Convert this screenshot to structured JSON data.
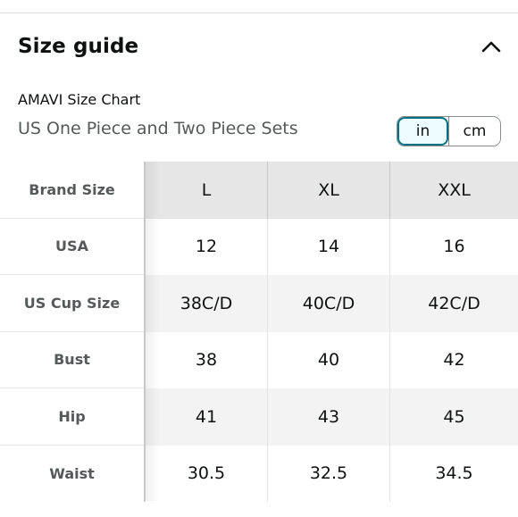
{
  "header": {
    "title": "Size guide",
    "toggle_icon": "chevron-up-icon"
  },
  "chart": {
    "brand": "AMAVI Size Chart",
    "set_name": "US One Piece and Two Piece Sets"
  },
  "units": {
    "options": [
      "in",
      "cm"
    ],
    "selected": "in",
    "accent": "#007185"
  },
  "table": {
    "header_label": "Brand Size",
    "sizes": [
      "L",
      "XL",
      "XXL"
    ],
    "rows": [
      {
        "label": "USA",
        "values": [
          "12",
          "14",
          "16"
        ]
      },
      {
        "label": "US Cup Size",
        "values": [
          "38C/D",
          "40C/D",
          "42C/D"
        ]
      },
      {
        "label": "Bust",
        "values": [
          "38",
          "40",
          "42"
        ]
      },
      {
        "label": "Hip",
        "values": [
          "41",
          "43",
          "45"
        ]
      },
      {
        "label": "Waist",
        "values": [
          "30.5",
          "32.5",
          "34.5"
        ]
      }
    ]
  }
}
